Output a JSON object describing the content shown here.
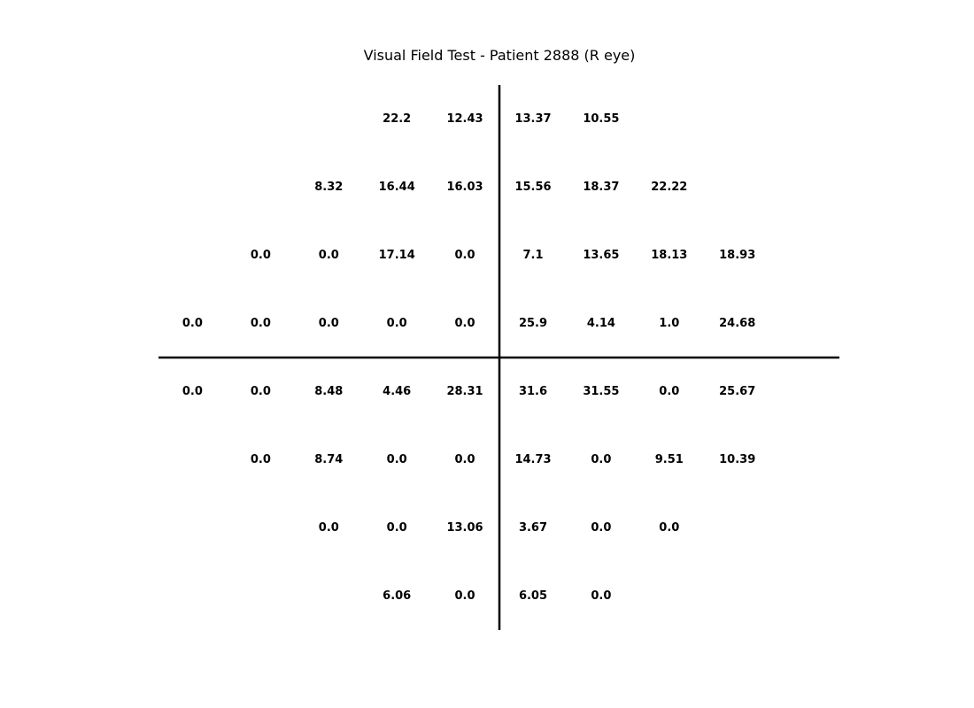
{
  "chart_data": {
    "type": "table",
    "title": "Visual Field Test - Patient 2888 (R eye)",
    "eye": "R",
    "patient_id": "2888",
    "grid": {
      "columns": 10,
      "rows": 8,
      "axis_color": "#000000",
      "text_color": "#000000"
    },
    "rows": [
      [
        null,
        null,
        null,
        "22.2",
        "12.43",
        "13.37",
        "10.55",
        null,
        null,
        null
      ],
      [
        null,
        null,
        "8.32",
        "16.44",
        "16.03",
        "15.56",
        "18.37",
        "22.22",
        null,
        null
      ],
      [
        null,
        "0.0",
        "0.0",
        "17.14",
        "0.0",
        "7.1",
        "13.65",
        "18.13",
        "18.93",
        null
      ],
      [
        "0.0",
        "0.0",
        "0.0",
        "0.0",
        "0.0",
        "25.9",
        "4.14",
        "1.0",
        "24.68",
        null
      ],
      [
        "0.0",
        "0.0",
        "8.48",
        "4.46",
        "28.31",
        "31.6",
        "31.55",
        "0.0",
        "25.67",
        null
      ],
      [
        null,
        "0.0",
        "8.74",
        "0.0",
        "0.0",
        "14.73",
        "0.0",
        "9.51",
        "10.39",
        null
      ],
      [
        null,
        null,
        "0.0",
        "0.0",
        "13.06",
        "3.67",
        "0.0",
        "0.0",
        null,
        null
      ],
      [
        null,
        null,
        null,
        "6.06",
        "0.0",
        "6.05",
        "0.0",
        null,
        null,
        null
      ]
    ]
  }
}
